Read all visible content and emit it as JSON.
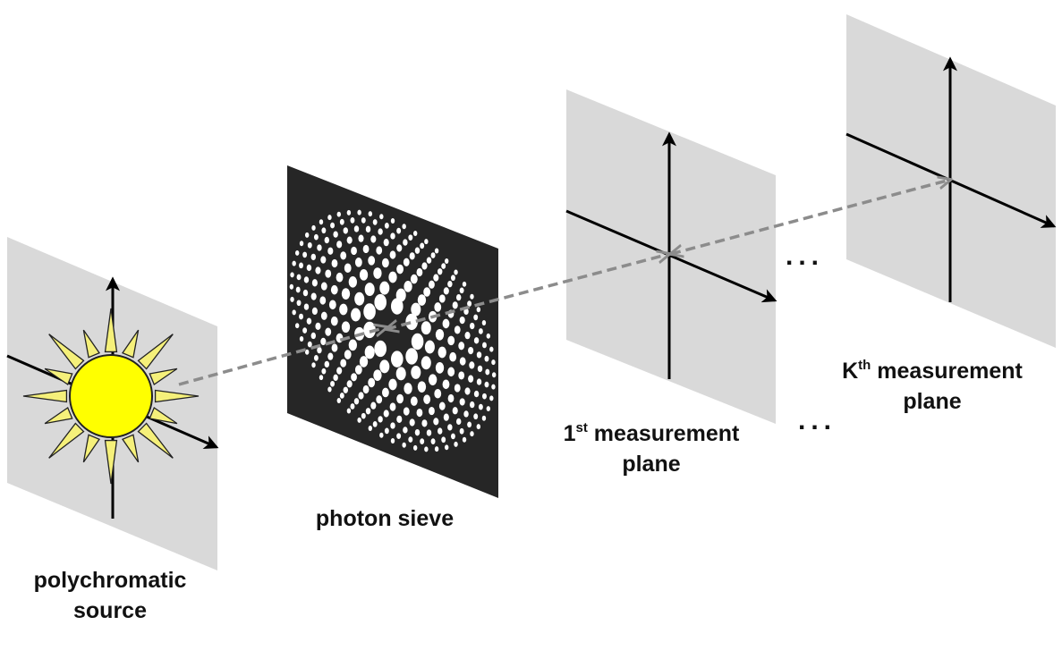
{
  "labels": {
    "source_line1": "polychromatic",
    "source_line2": "source",
    "sieve": "photon sieve",
    "first_number": "1",
    "first_sup": "st",
    "first_rest": " measurement",
    "first_line2": "plane",
    "k_letter": "K",
    "k_sup": "th",
    "k_rest": " measurement",
    "k_line2": "plane",
    "ellipsis_upper": "...",
    "ellipsis_lower": "..."
  },
  "colors": {
    "plane_fill": "#d9d9d9",
    "sieve_fill": "#262626",
    "sieve_holes": "#ffffff",
    "axis": "#000000",
    "beam": "#8c8c8c",
    "sun_fill": "#ffff00",
    "sun_rays": "#f5f07a"
  },
  "icons": {
    "source_symbol": "sun-icon",
    "sieve_symbol": "photon-sieve-pattern"
  }
}
